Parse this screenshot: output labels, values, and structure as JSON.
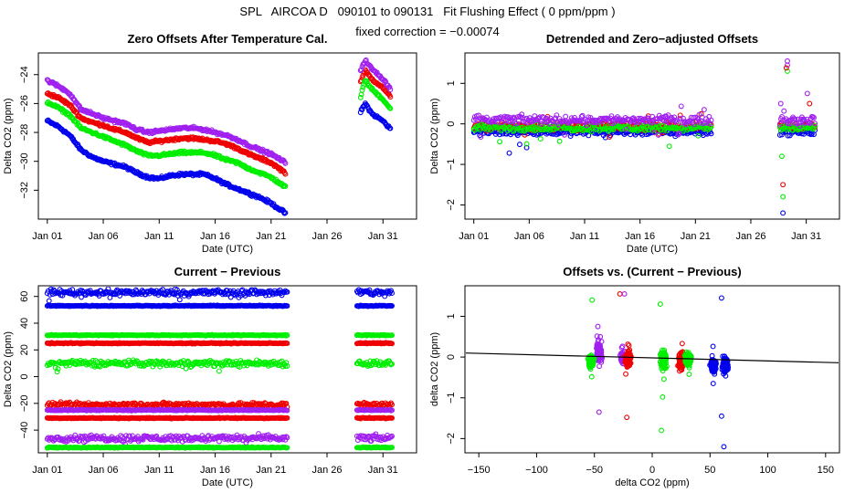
{
  "header": {
    "title": "SPL   AIRCOA D   090101 to 090131   Fit Flushing Effect ( 0 ppm/ppm )",
    "subtitle": "fixed correction = −0.00074"
  },
  "colors": {
    "blue": "#0000ee",
    "red": "#ee0000",
    "green": "#00ee00",
    "purple": "#a020f0",
    "line": "#000000"
  },
  "chart_data": [
    {
      "id": "zero-offsets",
      "type": "scatter",
      "title": "Zero Offsets After Temperature Cal.",
      "xlabel": "Date (UTC)",
      "ylabel": "Delta CO2 (ppm)",
      "xticks": [
        "Jan 01",
        "Jan 06",
        "Jan 11",
        "Jan 16",
        "Jan 21",
        "Jan 26",
        "Jan 31"
      ],
      "xlim": [
        0.2,
        34.0
      ],
      "ylim": [
        -34.0,
        -22.5
      ],
      "yticks": [
        -32,
        -30,
        -28,
        -26,
        -24
      ],
      "gaps": [
        [
          22.5,
          28.8
        ]
      ],
      "series": [
        {
          "name": "blue",
          "color": "blue",
          "x": [
            1,
            2,
            3,
            4,
            5,
            6,
            7,
            8,
            9,
            10,
            11,
            12,
            13,
            14,
            15,
            16,
            17,
            18,
            19,
            20,
            21,
            22.3,
            29.0,
            29.4,
            29.6,
            30,
            31,
            31.7
          ],
          "y": [
            -27.2,
            -27.6,
            -28.2,
            -29.2,
            -29.7,
            -30.0,
            -30.2,
            -30.4,
            -30.8,
            -31.1,
            -31.2,
            -31.0,
            -30.9,
            -30.9,
            -30.9,
            -31.2,
            -31.6,
            -31.9,
            -32.2,
            -32.5,
            -32.9,
            -33.6,
            -26.6,
            -26.0,
            -26.2,
            -26.7,
            -27.2,
            -27.8
          ]
        },
        {
          "name": "red",
          "color": "red",
          "x": [
            1,
            2,
            3,
            4,
            5,
            6,
            7,
            8,
            9,
            10,
            11,
            12,
            13,
            14,
            15,
            16,
            17,
            18,
            19,
            20,
            21,
            22.3,
            29.0,
            29.4,
            29.6,
            30,
            31,
            31.7
          ],
          "y": [
            -25.3,
            -25.6,
            -26.1,
            -27.0,
            -27.3,
            -27.5,
            -27.8,
            -28.0,
            -28.4,
            -28.7,
            -28.6,
            -28.5,
            -28.4,
            -28.4,
            -28.5,
            -28.6,
            -28.8,
            -29.1,
            -29.5,
            -29.8,
            -30.1,
            -30.8,
            -24.5,
            -23.7,
            -23.9,
            -24.3,
            -24.9,
            -25.6
          ]
        },
        {
          "name": "green",
          "color": "green",
          "x": [
            1,
            2,
            3,
            4,
            5,
            6,
            7,
            8,
            9,
            10,
            11,
            12,
            13,
            14,
            15,
            16,
            17,
            18,
            19,
            20,
            21,
            22.3,
            29.0,
            29.4,
            29.6,
            30,
            31,
            31.7
          ],
          "y": [
            -25.9,
            -26.3,
            -26.8,
            -27.7,
            -28.0,
            -28.3,
            -28.6,
            -28.9,
            -29.3,
            -29.6,
            -29.6,
            -29.5,
            -29.4,
            -29.4,
            -29.4,
            -29.6,
            -29.9,
            -30.1,
            -30.5,
            -30.8,
            -31.1,
            -31.8,
            -25.6,
            -24.3,
            -24.6,
            -25.0,
            -25.7,
            -26.4
          ]
        },
        {
          "name": "purple",
          "color": "purple",
          "x": [
            1,
            2,
            3,
            4,
            5,
            6,
            7,
            8,
            9,
            10,
            11,
            12,
            13,
            14,
            15,
            16,
            17,
            18,
            19,
            20,
            21,
            22.3,
            29.0,
            29.4,
            29.6,
            30,
            31,
            31.7
          ],
          "y": [
            -24.4,
            -24.8,
            -25.3,
            -26.4,
            -26.7,
            -27.0,
            -27.2,
            -27.4,
            -27.8,
            -28.0,
            -27.9,
            -27.8,
            -27.7,
            -27.7,
            -27.8,
            -28.0,
            -28.2,
            -28.5,
            -28.9,
            -29.2,
            -29.5,
            -30.1,
            -23.7,
            -23.0,
            -23.2,
            -23.6,
            -24.3,
            -25.0
          ]
        }
      ]
    },
    {
      "id": "detrended",
      "type": "scatter",
      "title": "Detrended and Zero−adjusted Offsets",
      "xlabel": "Date (UTC)",
      "ylabel": "Delta CO2 (ppm)",
      "xticks": [
        "Jan 01",
        "Jan 06",
        "Jan 11",
        "Jan 16",
        "Jan 21",
        "Jan 26",
        "Jan 31"
      ],
      "xlim": [
        0.2,
        34.0
      ],
      "ylim": [
        -2.35,
        1.75
      ],
      "yticks": [
        -2,
        -1,
        0,
        1
      ],
      "gaps": [
        [
          22.5,
          28.6
        ]
      ],
      "series": [
        {
          "name": "blue",
          "color": "blue",
          "mean": -0.2,
          "spread": 0.07
        },
        {
          "name": "red",
          "color": "red",
          "mean": -0.05,
          "spread": 0.08
        },
        {
          "name": "green",
          "color": "green",
          "mean": -0.1,
          "spread": 0.07
        },
        {
          "name": "purple",
          "color": "purple",
          "mean": 0.1,
          "spread": 0.09
        }
      ],
      "outliers": [
        {
          "color": "purple",
          "x": 29.3,
          "y": 1.55
        },
        {
          "color": "purple",
          "x": 29.3,
          "y": 1.45
        },
        {
          "color": "green",
          "x": 29.3,
          "y": 1.3
        },
        {
          "color": "red",
          "x": 29.2,
          "y": 1.38
        },
        {
          "color": "blue",
          "x": 28.9,
          "y": -2.2
        },
        {
          "color": "red",
          "x": 28.9,
          "y": -1.5
        },
        {
          "color": "green",
          "x": 28.9,
          "y": -1.8
        },
        {
          "color": "green",
          "x": 28.8,
          "y": -0.8
        },
        {
          "color": "purple",
          "x": 28.7,
          "y": 0.5
        },
        {
          "color": "blue",
          "x": 4.2,
          "y": -0.72
        },
        {
          "color": "purple",
          "x": 31.1,
          "y": 0.75
        },
        {
          "color": "red",
          "x": 31.3,
          "y": 0.5
        }
      ]
    },
    {
      "id": "current-previous",
      "type": "scatter",
      "title": "Current − Previous",
      "xlabel": "Date (UTC)",
      "ylabel": "Delta CO2 (ppm)",
      "xticks": [
        "Jan 01",
        "Jan 06",
        "Jan 11",
        "Jan 16",
        "Jan 21",
        "Jan 26",
        "Jan 31"
      ],
      "xlim": [
        0.2,
        34.0
      ],
      "ylim": [
        -57,
        68
      ],
      "yticks": [
        -40,
        -20,
        0,
        20,
        40,
        60
      ],
      "gaps": [
        [
          22.5,
          28.6
        ]
      ],
      "bands": [
        {
          "color": "blue",
          "level": 63,
          "jitter": 2.0
        },
        {
          "color": "blue",
          "level": 53,
          "jitter": 0.3
        },
        {
          "color": "green",
          "level": 31,
          "jitter": 0.3
        },
        {
          "color": "red",
          "level": 25,
          "jitter": 0.3
        },
        {
          "color": "green",
          "level": 10,
          "jitter": 2.0
        },
        {
          "color": "red",
          "level": -21,
          "jitter": 1.5
        },
        {
          "color": "purple",
          "level": -25,
          "jitter": 0.3
        },
        {
          "color": "red",
          "level": -31,
          "jitter": 0.3
        },
        {
          "color": "purple",
          "level": -46,
          "jitter": 2.0
        },
        {
          "color": "green",
          "level": -53,
          "jitter": 0.3
        }
      ]
    },
    {
      "id": "offsets-vs-current",
      "type": "scatter",
      "title": "Offsets vs. (Current − Previous)",
      "xlabel": "delta CO2 (ppm)",
      "ylabel": "delta CO2 (ppm)",
      "xlim": [
        -162,
        162
      ],
      "ylim": [
        -2.35,
        1.75
      ],
      "xticks": [
        -150,
        -100,
        -50,
        0,
        50,
        100,
        150
      ],
      "yticks": [
        -2,
        -1,
        0,
        1
      ],
      "fit_line": {
        "slope": -0.00074,
        "intercept": -0.02
      },
      "clusters": [
        {
          "color": "purple",
          "x": -46,
          "mean": 0.1,
          "spread": 0.2
        },
        {
          "color": "green",
          "x": -53,
          "mean": -0.1,
          "spread": 0.12
        },
        {
          "color": "purple",
          "x": -25,
          "mean": 0.0,
          "spread": 0.1
        },
        {
          "color": "red",
          "x": -21,
          "mean": -0.05,
          "spread": 0.15
        },
        {
          "color": "green",
          "x": 10,
          "mean": -0.1,
          "spread": 0.15
        },
        {
          "color": "red",
          "x": 25,
          "mean": -0.1,
          "spread": 0.15
        },
        {
          "color": "green",
          "x": 31,
          "mean": -0.05,
          "spread": 0.12
        },
        {
          "color": "blue",
          "x": 53,
          "mean": -0.2,
          "spread": 0.12
        },
        {
          "color": "blue",
          "x": 63,
          "mean": -0.2,
          "spread": 0.18
        }
      ],
      "outliers": [
        {
          "color": "green",
          "x": -52,
          "y": 1.4
        },
        {
          "color": "red",
          "x": -28,
          "y": 1.55
        },
        {
          "color": "purple",
          "x": -24,
          "y": 1.55
        },
        {
          "color": "green",
          "x": 7,
          "y": 1.3
        },
        {
          "color": "purple",
          "x": -46,
          "y": -1.35
        },
        {
          "color": "red",
          "x": -22,
          "y": -1.48
        },
        {
          "color": "green",
          "x": 8,
          "y": -1.8
        },
        {
          "color": "green",
          "x": 9,
          "y": -0.98
        },
        {
          "color": "blue",
          "x": 62,
          "y": -2.2
        },
        {
          "color": "blue",
          "x": 60,
          "y": -1.45
        },
        {
          "color": "blue",
          "x": 60,
          "y": 1.45
        },
        {
          "color": "purple",
          "x": -47,
          "y": 0.75
        }
      ]
    }
  ]
}
